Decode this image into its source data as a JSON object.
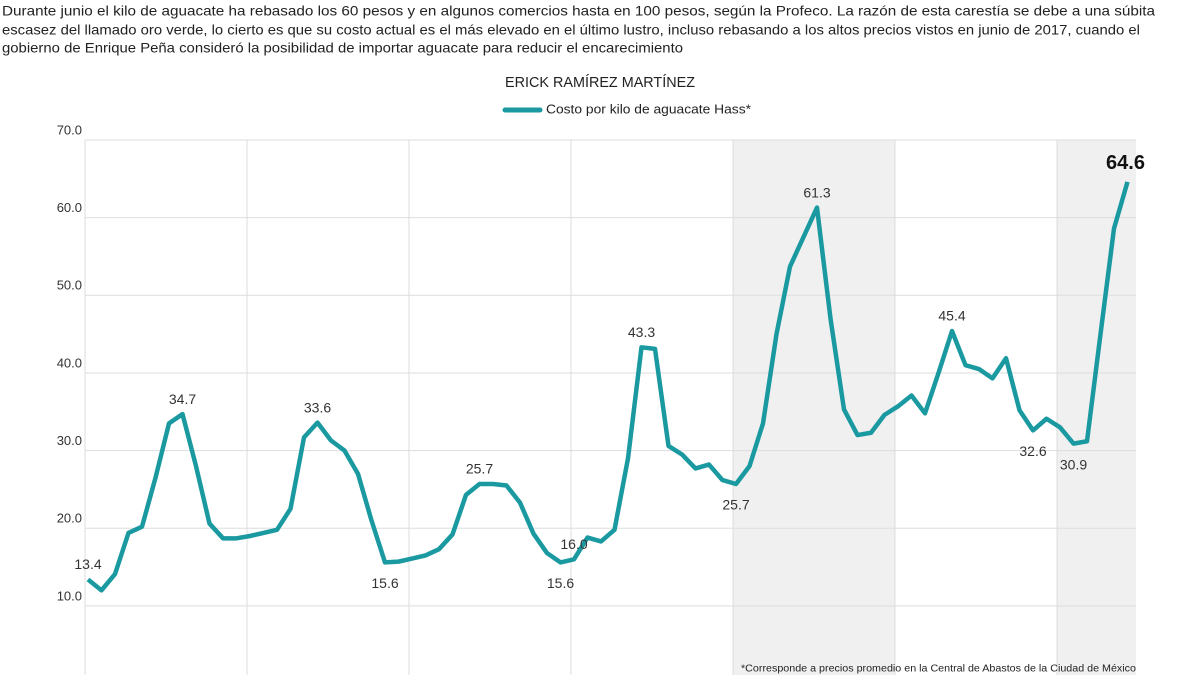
{
  "chart_data": {
    "type": "line",
    "description": [
      "Durante junio el kilo de aguacate ha rebasado los 60 pesos y en algunos comercios hasta en 100 pesos, según la Profeco. La razón de esta carestía se debe a una súbita",
      "escasez del llamado oro verde, lo cierto es que su costo actual es el más elevado en el último lustro, incluso rebasando a los altos precios vistos en junio de 2017, cuando el",
      "gobierno de Enrique Peña consideró la posibilidad de importar aguacate para reducir el encarecimiento"
    ],
    "author": "ERICK RAMÍREZ MARTÍNEZ",
    "series": [
      {
        "name": "Costo por kilo de aguacate Hass*",
        "color": "#1a9aa0",
        "values": [
          13.4,
          12.0,
          14.1,
          19.4,
          20.2,
          26.5,
          33.5,
          34.7,
          28.0,
          20.6,
          18.7,
          18.7,
          19.0,
          19.4,
          19.8,
          22.5,
          31.7,
          33.6,
          31.3,
          30.0,
          27.0,
          21.0,
          15.6,
          15.7,
          16.1,
          16.5,
          17.3,
          19.2,
          24.3,
          25.7,
          25.7,
          25.5,
          23.3,
          19.3,
          16.8,
          15.6,
          16.0,
          18.8,
          18.3,
          19.8,
          29.0,
          43.3,
          43.1,
          30.6,
          29.5,
          27.7,
          28.2,
          26.2,
          25.7,
          28.0,
          33.5,
          45.0,
          53.7,
          57.5,
          61.3,
          47.0,
          35.3,
          32.0,
          32.3,
          34.6,
          35.7,
          37.1,
          34.8,
          40.0,
          45.4,
          41.0,
          40.5,
          39.3,
          41.9,
          35.2,
          32.6,
          34.1,
          33.0,
          30.9,
          31.2,
          45.0,
          58.6,
          64.6
        ],
        "value_labels": [
          "13.4",
          null,
          null,
          null,
          null,
          null,
          null,
          "34.7",
          null,
          null,
          null,
          null,
          null,
          null,
          null,
          null,
          null,
          "33.6",
          null,
          null,
          null,
          null,
          "15.6",
          null,
          null,
          null,
          null,
          null,
          null,
          "25.7",
          null,
          null,
          null,
          null,
          null,
          "15.6",
          "16.0",
          null,
          null,
          null,
          null,
          "43.3",
          null,
          null,
          null,
          null,
          null,
          null,
          "25.7",
          null,
          null,
          null,
          null,
          null,
          "61.3",
          null,
          null,
          null,
          null,
          null,
          null,
          null,
          null,
          null,
          "45.4",
          null,
          null,
          null,
          null,
          null,
          "32.6",
          null,
          null,
          "30.9",
          null,
          null,
          null,
          "64.6"
        ]
      }
    ],
    "ylim": [
      2,
      70
    ],
    "yticks": [
      {
        "value": 10,
        "label": "10.0"
      },
      {
        "value": 20,
        "label": "20.0"
      },
      {
        "value": 30,
        "label": "30.0"
      },
      {
        "value": 40,
        "label": "40.0"
      },
      {
        "value": 50,
        "label": "50.0"
      },
      {
        "value": 60,
        "label": "60.0"
      },
      {
        "value": 70,
        "label": "70.0"
      }
    ],
    "grid": true,
    "footnote": "*Corresponde a precios promedio en la Central de Abastos de la Ciudad de México"
  }
}
